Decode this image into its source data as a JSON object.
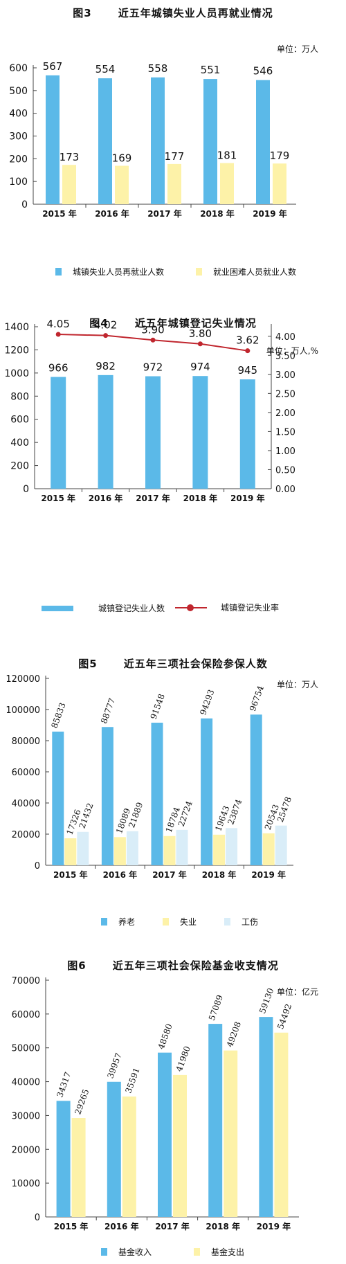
{
  "colors": {
    "blue": "#5bb9e8",
    "yellow": "#fdf2a8",
    "lightblue": "#d9edf8",
    "red": "#c0262e",
    "axis": "#444444"
  },
  "chart_data": [
    {
      "type": "bar",
      "fig": "图3",
      "title": "近五年城镇失业人员再就业情况",
      "unit": "单位：万人",
      "categories": [
        "2015 年",
        "2016 年",
        "2017 年",
        "2018 年",
        "2019 年"
      ],
      "ylim": [
        0,
        600
      ],
      "yticks": [
        0,
        100,
        200,
        300,
        400,
        500,
        600
      ],
      "series": [
        {
          "name": "城镇失业人员再就业人数",
          "values": [
            567,
            554,
            558,
            551,
            546
          ]
        },
        {
          "name": "就业困难人员就业人数",
          "values": [
            173,
            169,
            177,
            181,
            179
          ]
        }
      ]
    },
    {
      "type": "bar+line",
      "fig": "图4",
      "title": "近五年城镇登记失业情况",
      "unit": "单位：万人,%",
      "categories": [
        "2015 年",
        "2016 年",
        "2017 年",
        "2018 年",
        "2019 年"
      ],
      "ylim": [
        0,
        1400
      ],
      "yticks": [
        0,
        200,
        400,
        600,
        800,
        1000,
        1200,
        1400
      ],
      "y2lim": [
        0,
        4.25
      ],
      "y2ticks": [
        "0.00",
        "0.50",
        "1.00",
        "1.50",
        "2.00",
        "2.50",
        "3.00",
        "3.50",
        "4.00"
      ],
      "series": [
        {
          "name": "城镇登记失业人数",
          "values": [
            966,
            982,
            972,
            974,
            945
          ]
        },
        {
          "name": "城镇登记失业率",
          "values": [
            4.05,
            4.02,
            3.9,
            3.8,
            3.62
          ],
          "labels": [
            "4.05",
            "4.02",
            "3.90",
            "3.80",
            "3.62"
          ]
        }
      ]
    },
    {
      "type": "bar",
      "fig": "图5",
      "title": "近五年三项社会保险参保人数",
      "unit": "单位：万人",
      "categories": [
        "2015 年",
        "2016 年",
        "2017 年",
        "2018 年",
        "2019 年"
      ],
      "ylim": [
        0,
        120000
      ],
      "yticks": [
        0,
        20000,
        40000,
        60000,
        80000,
        100000,
        120000
      ],
      "series": [
        {
          "name": "养老",
          "values": [
            85833,
            88777,
            91548,
            94293,
            96754
          ]
        },
        {
          "name": "失业",
          "values": [
            17326,
            18089,
            18784,
            19643,
            20543
          ]
        },
        {
          "name": "工伤",
          "values": [
            21432,
            21889,
            22724,
            23874,
            25478
          ]
        }
      ]
    },
    {
      "type": "bar",
      "fig": "图6",
      "title": "近五年三项社会保险基金收支情况",
      "unit": "单位：亿元",
      "categories": [
        "2015 年",
        "2016 年",
        "2017 年",
        "2018 年",
        "2019 年"
      ],
      "ylim": [
        0,
        70000
      ],
      "yticks": [
        0,
        10000,
        20000,
        30000,
        40000,
        50000,
        60000,
        70000
      ],
      "series": [
        {
          "name": "基金收入",
          "values": [
            34317,
            39957,
            48580,
            57089,
            59130
          ]
        },
        {
          "name": "基金支出",
          "values": [
            29265,
            35591,
            41980,
            49208,
            54492
          ]
        }
      ]
    }
  ]
}
